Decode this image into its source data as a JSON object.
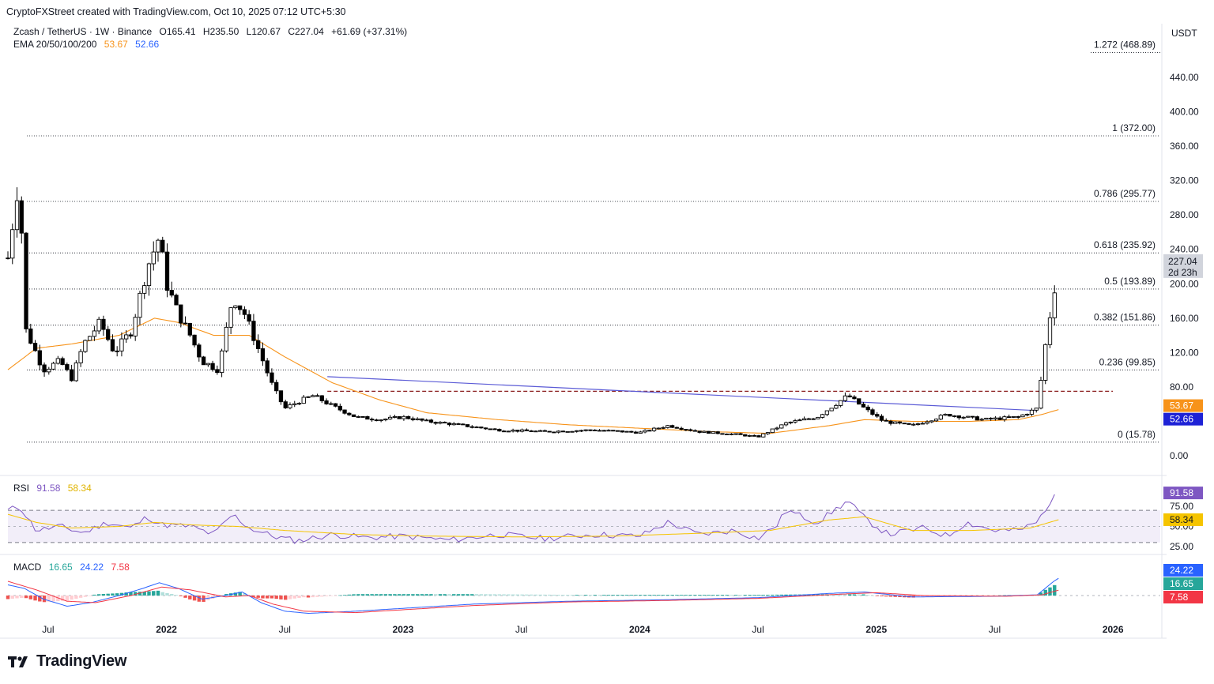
{
  "credit": "CryptoFXStreet created with TradingView.com, Oct 10, 2025 07:12 UTC+5:30",
  "brand": "TradingView",
  "currency": "USDT",
  "main_legend": {
    "symbol": "Zcash / TetherUS · 1W · Binance",
    "open": "O165.41",
    "high": "H235.50",
    "low": "L120.67",
    "close": "C227.04",
    "change": "+61.69 (+37.31%)",
    "ema_label": "EMA 20/50/100/200",
    "ema_val1": "53.67",
    "ema_val2": "52.66"
  },
  "rsi_legend": {
    "label": "RSI",
    "val1": "91.58",
    "val2": "58.34"
  },
  "macd_legend": {
    "label": "MACD",
    "val1": "16.65",
    "val2": "24.22",
    "val3": "7.58"
  },
  "colors": {
    "up": "#ffffff",
    "down": "#000000",
    "ema_orange": "#f7931a",
    "ema_blue": "#2962ff",
    "fib": "#131722",
    "resistance": "#8b1e1e",
    "rsi": "#7e57c2",
    "rsi_ma": "#f5c400",
    "macd": "#2962ff",
    "signal": "#f23645",
    "hist_pos": "#26a69a",
    "hist_neg": "#ef5350",
    "trend": "#5b5bd6"
  },
  "chart_data": {
    "type": "candlestick",
    "interval": "1W",
    "price_axis_ticks": [
      "440.00",
      "400.00",
      "360.00",
      "320.00",
      "280.00",
      "240.00",
      "200.00",
      "160.00",
      "120.00",
      "80.00",
      "0.00"
    ],
    "price_axis_tick_values": [
      440,
      400,
      360,
      320,
      280,
      240,
      200,
      160,
      120,
      80,
      0
    ],
    "time_axis_ticks": [
      "Jul",
      "2022",
      "Jul",
      "2023",
      "Jul",
      "2024",
      "Jul",
      "2025",
      "Jul",
      "2026"
    ],
    "current_price": "227.04",
    "countdown": "2d 23h",
    "ema_tags": [
      "53.67",
      "52.66"
    ],
    "fib_levels": [
      {
        "label": "1.272 (468.89)",
        "value": 468.89
      },
      {
        "label": "1 (372.00)",
        "value": 372.0
      },
      {
        "label": "0.786 (295.77)",
        "value": 295.77
      },
      {
        "label": "0.618 (235.92)",
        "value": 235.92
      },
      {
        "label": "0.5 (193.89)",
        "value": 193.89
      },
      {
        "label": "0.382 (151.86)",
        "value": 151.86
      },
      {
        "label": "0.236 (99.85)",
        "value": 99.85
      },
      {
        "label": "0 (15.78)",
        "value": 15.78
      }
    ],
    "resistance_value": 75,
    "price_anchors": [
      [
        2021.33,
        230
      ],
      [
        2021.38,
        330
      ],
      [
        2021.4,
        150
      ],
      [
        2021.48,
        100
      ],
      [
        2021.55,
        110
      ],
      [
        2021.6,
        90
      ],
      [
        2021.65,
        130
      ],
      [
        2021.72,
        155
      ],
      [
        2021.78,
        120
      ],
      [
        2021.85,
        145
      ],
      [
        2021.92,
        220
      ],
      [
        2021.97,
        255
      ],
      [
        2022.0,
        200
      ],
      [
        2022.05,
        165
      ],
      [
        2022.1,
        140
      ],
      [
        2022.15,
        110
      ],
      [
        2022.22,
        100
      ],
      [
        2022.28,
        185
      ],
      [
        2022.33,
        165
      ],
      [
        2022.38,
        130
      ],
      [
        2022.45,
        80
      ],
      [
        2022.5,
        55
      ],
      [
        2022.55,
        62
      ],
      [
        2022.62,
        70
      ],
      [
        2022.7,
        58
      ],
      [
        2022.8,
        45
      ],
      [
        2022.9,
        42
      ],
      [
        2023.0,
        45
      ],
      [
        2023.1,
        40
      ],
      [
        2023.2,
        37
      ],
      [
        2023.4,
        30
      ],
      [
        2023.6,
        28
      ],
      [
        2023.8,
        30
      ],
      [
        2024.0,
        27
      ],
      [
        2024.12,
        35
      ],
      [
        2024.25,
        28
      ],
      [
        2024.4,
        25
      ],
      [
        2024.5,
        22
      ],
      [
        2024.62,
        38
      ],
      [
        2024.75,
        45
      ],
      [
        2024.88,
        70
      ],
      [
        2024.95,
        55
      ],
      [
        2025.03,
        40
      ],
      [
        2025.15,
        35
      ],
      [
        2025.3,
        48
      ],
      [
        2025.45,
        42
      ],
      [
        2025.6,
        45
      ],
      [
        2025.68,
        55
      ],
      [
        2025.72,
        140
      ],
      [
        2025.75,
        190
      ],
      [
        2025.77,
        227
      ]
    ],
    "ema_orange_anchors": [
      [
        2021.33,
        100
      ],
      [
        2021.45,
        125
      ],
      [
        2021.6,
        130
      ],
      [
        2021.8,
        140
      ],
      [
        2021.95,
        160
      ],
      [
        2022.05,
        155
      ],
      [
        2022.2,
        140
      ],
      [
        2022.35,
        140
      ],
      [
        2022.5,
        115
      ],
      [
        2022.7,
        85
      ],
      [
        2022.9,
        65
      ],
      [
        2023.1,
        50
      ],
      [
        2023.4,
        42
      ],
      [
        2023.7,
        36
      ],
      [
        2024.0,
        32
      ],
      [
        2024.3,
        28
      ],
      [
        2024.55,
        26
      ],
      [
        2024.8,
        35
      ],
      [
        2024.95,
        42
      ],
      [
        2025.15,
        40
      ],
      [
        2025.4,
        40
      ],
      [
        2025.6,
        42
      ],
      [
        2025.7,
        48
      ],
      [
        2025.77,
        53.67
      ]
    ],
    "trend_line": [
      [
        2022.68,
        92
      ],
      [
        2025.67,
        52.66
      ]
    ],
    "rsi_axis_ticks": [
      "75.00",
      "50.00",
      "25.00"
    ],
    "rsi_axis_tick_values": [
      75,
      50,
      25
    ],
    "rsi_anchors": [
      [
        2021.33,
        70
      ],
      [
        2021.38,
        75
      ],
      [
        2021.45,
        45
      ],
      [
        2021.55,
        50
      ],
      [
        2021.65,
        42
      ],
      [
        2021.75,
        55
      ],
      [
        2021.85,
        48
      ],
      [
        2021.92,
        62
      ],
      [
        2021.98,
        52
      ],
      [
        2022.1,
        50
      ],
      [
        2022.2,
        40
      ],
      [
        2022.28,
        65
      ],
      [
        2022.35,
        48
      ],
      [
        2022.45,
        38
      ],
      [
        2022.55,
        32
      ],
      [
        2022.7,
        40
      ],
      [
        2022.85,
        36
      ],
      [
        2023.0,
        38
      ],
      [
        2023.2,
        33
      ],
      [
        2023.4,
        40
      ],
      [
        2023.6,
        35
      ],
      [
        2023.8,
        40
      ],
      [
        2024.0,
        38
      ],
      [
        2024.12,
        55
      ],
      [
        2024.25,
        40
      ],
      [
        2024.4,
        45
      ],
      [
        2024.5,
        35
      ],
      [
        2024.58,
        52
      ],
      [
        2024.62,
        70
      ],
      [
        2024.75,
        55
      ],
      [
        2024.88,
        82
      ],
      [
        2024.95,
        60
      ],
      [
        2025.05,
        40
      ],
      [
        2025.2,
        48
      ],
      [
        2025.3,
        38
      ],
      [
        2025.38,
        55
      ],
      [
        2025.5,
        45
      ],
      [
        2025.6,
        45
      ],
      [
        2025.68,
        55
      ],
      [
        2025.72,
        75
      ],
      [
        2025.77,
        91.58
      ]
    ],
    "rsi_ma_anchors": [
      [
        2021.33,
        65
      ],
      [
        2021.45,
        55
      ],
      [
        2021.6,
        48
      ],
      [
        2021.8,
        50
      ],
      [
        2021.95,
        55
      ],
      [
        2022.1,
        52
      ],
      [
        2022.3,
        50
      ],
      [
        2022.5,
        45
      ],
      [
        2022.8,
        40
      ],
      [
        2023.1,
        38
      ],
      [
        2023.5,
        37
      ],
      [
        2023.9,
        38
      ],
      [
        2024.3,
        42
      ],
      [
        2024.55,
        45
      ],
      [
        2024.8,
        58
      ],
      [
        2024.95,
        62
      ],
      [
        2025.15,
        45
      ],
      [
        2025.4,
        45
      ],
      [
        2025.65,
        48
      ],
      [
        2025.77,
        58.34
      ]
    ],
    "macd_axis_tags": [
      "24.22",
      "16.65",
      "7.58"
    ],
    "macd_anchors": [
      [
        2021.33,
        15
      ],
      [
        2021.4,
        10
      ],
      [
        2021.48,
        -5
      ],
      [
        2021.58,
        -15
      ],
      [
        2021.68,
        -10
      ],
      [
        2021.8,
        0
      ],
      [
        2021.9,
        10
      ],
      [
        2021.97,
        18
      ],
      [
        2022.05,
        10
      ],
      [
        2022.15,
        -5
      ],
      [
        2022.25,
        0
      ],
      [
        2022.32,
        5
      ],
      [
        2022.4,
        -10
      ],
      [
        2022.5,
        -22
      ],
      [
        2022.6,
        -25
      ],
      [
        2022.8,
        -22
      ],
      [
        2023.0,
        -18
      ],
      [
        2023.3,
        -12
      ],
      [
        2023.7,
        -8
      ],
      [
        2024.1,
        -6
      ],
      [
        2024.5,
        -3
      ],
      [
        2024.8,
        3
      ],
      [
        2024.95,
        5
      ],
      [
        2025.15,
        -2
      ],
      [
        2025.5,
        -1
      ],
      [
        2025.68,
        1
      ],
      [
        2025.75,
        20
      ],
      [
        2025.77,
        24.22
      ]
    ],
    "macd_signal_anchors": [
      [
        2021.33,
        20
      ],
      [
        2021.45,
        8
      ],
      [
        2021.58,
        -8
      ],
      [
        2021.7,
        -10
      ],
      [
        2021.85,
        0
      ],
      [
        2021.98,
        12
      ],
      [
        2022.1,
        8
      ],
      [
        2022.25,
        -2
      ],
      [
        2022.35,
        0
      ],
      [
        2022.45,
        -12
      ],
      [
        2022.58,
        -22
      ],
      [
        2022.8,
        -24
      ],
      [
        2023.0,
        -20
      ],
      [
        2023.3,
        -14
      ],
      [
        2023.7,
        -9
      ],
      [
        2024.1,
        -7
      ],
      [
        2024.5,
        -4
      ],
      [
        2024.85,
        2
      ],
      [
        2025.0,
        4
      ],
      [
        2025.2,
        0
      ],
      [
        2025.55,
        -1
      ],
      [
        2025.7,
        1
      ],
      [
        2025.77,
        7.58
      ]
    ]
  }
}
